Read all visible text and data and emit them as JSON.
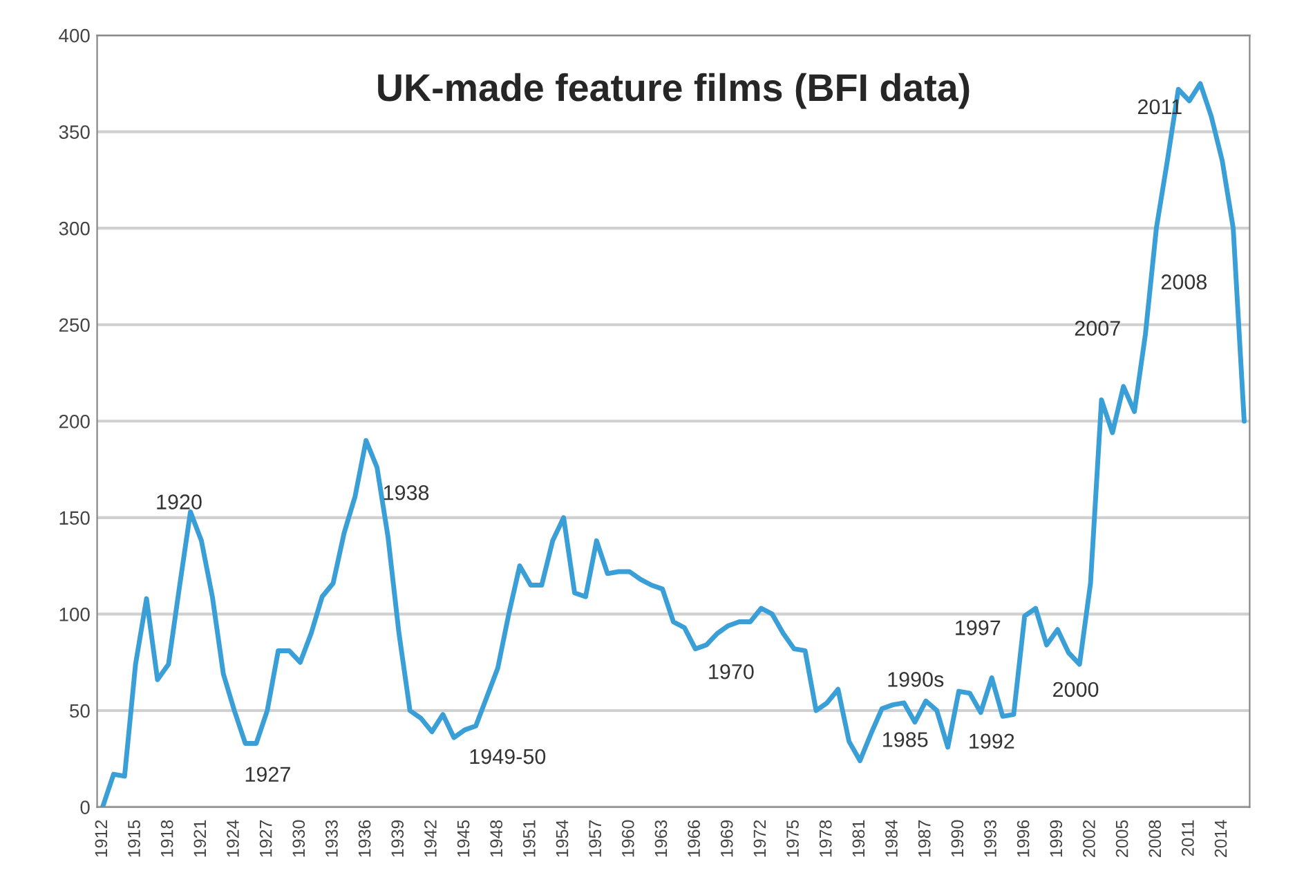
{
  "chart_data": {
    "type": "line",
    "title": "UK-made feature films (BFI data)",
    "x": [
      1912,
      1913,
      1914,
      1915,
      1916,
      1917,
      1918,
      1919,
      1920,
      1921,
      1922,
      1923,
      1924,
      1925,
      1926,
      1927,
      1928,
      1929,
      1930,
      1931,
      1932,
      1933,
      1934,
      1935,
      1936,
      1937,
      1938,
      1939,
      1940,
      1941,
      1942,
      1943,
      1944,
      1945,
      1946,
      1947,
      1948,
      1949,
      1950,
      1951,
      1952,
      1953,
      1954,
      1955,
      1956,
      1957,
      1958,
      1959,
      1960,
      1961,
      1962,
      1963,
      1964,
      1965,
      1966,
      1967,
      1968,
      1969,
      1970,
      1971,
      1972,
      1973,
      1974,
      1975,
      1976,
      1977,
      1978,
      1979,
      1980,
      1981,
      1982,
      1983,
      1984,
      1985,
      1986,
      1987,
      1988,
      1989,
      1990,
      1991,
      1992,
      1993,
      1994,
      1995,
      1996,
      1997,
      1998,
      1999,
      2000,
      2001,
      2002,
      2003,
      2004,
      2005,
      2006,
      2007,
      2008,
      2009,
      2010,
      2011,
      2012,
      2013,
      2014,
      2015,
      2016
    ],
    "series": [
      {
        "color": "#3a9fd6",
        "values": [
          0,
          17,
          16,
          74,
          108,
          66,
          74,
          114,
          153,
          138,
          109,
          69,
          50,
          33,
          33,
          50,
          81,
          81,
          75,
          90,
          109,
          116,
          142,
          161,
          190,
          176,
          140,
          90,
          50,
          46,
          39,
          48,
          36,
          40,
          42,
          57,
          72,
          100,
          125,
          115,
          115,
          138,
          150,
          111,
          109,
          138,
          121,
          122,
          122,
          118,
          115,
          113,
          96,
          93,
          82,
          84,
          90,
          94,
          96,
          96,
          103,
          100,
          90,
          82,
          81,
          50,
          54,
          61,
          34,
          24,
          38,
          51,
          53,
          54,
          44,
          55,
          50,
          31,
          60,
          59,
          49,
          67,
          47,
          48,
          99,
          103,
          84,
          92,
          80,
          74,
          116,
          211,
          194,
          218,
          205,
          245,
          300,
          335,
          372,
          366,
          375,
          358,
          335,
          300,
          200
        ]
      }
    ],
    "xlim": [
      1911.5,
      2016.5
    ],
    "xticks": [
      1912,
      1915,
      1918,
      1921,
      1924,
      1927,
      1930,
      1933,
      1936,
      1939,
      1942,
      1945,
      1948,
      1951,
      1954,
      1957,
      1960,
      1963,
      1966,
      1969,
      1972,
      1975,
      1978,
      1981,
      1984,
      1987,
      1990,
      1993,
      1996,
      1999,
      2002,
      2005,
      2008,
      2011,
      2014
    ],
    "ylim": [
      0,
      400
    ],
    "yticks": [
      0,
      50,
      100,
      150,
      200,
      250,
      300,
      350,
      400
    ],
    "grid": "y",
    "line_style": "solid",
    "annotations": [
      "1920",
      "1927",
      "1938",
      "1949-50",
      "1970",
      "1985",
      "1990s",
      "1992",
      "1997",
      "2000",
      "2007",
      "2008",
      "2011"
    ]
  }
}
